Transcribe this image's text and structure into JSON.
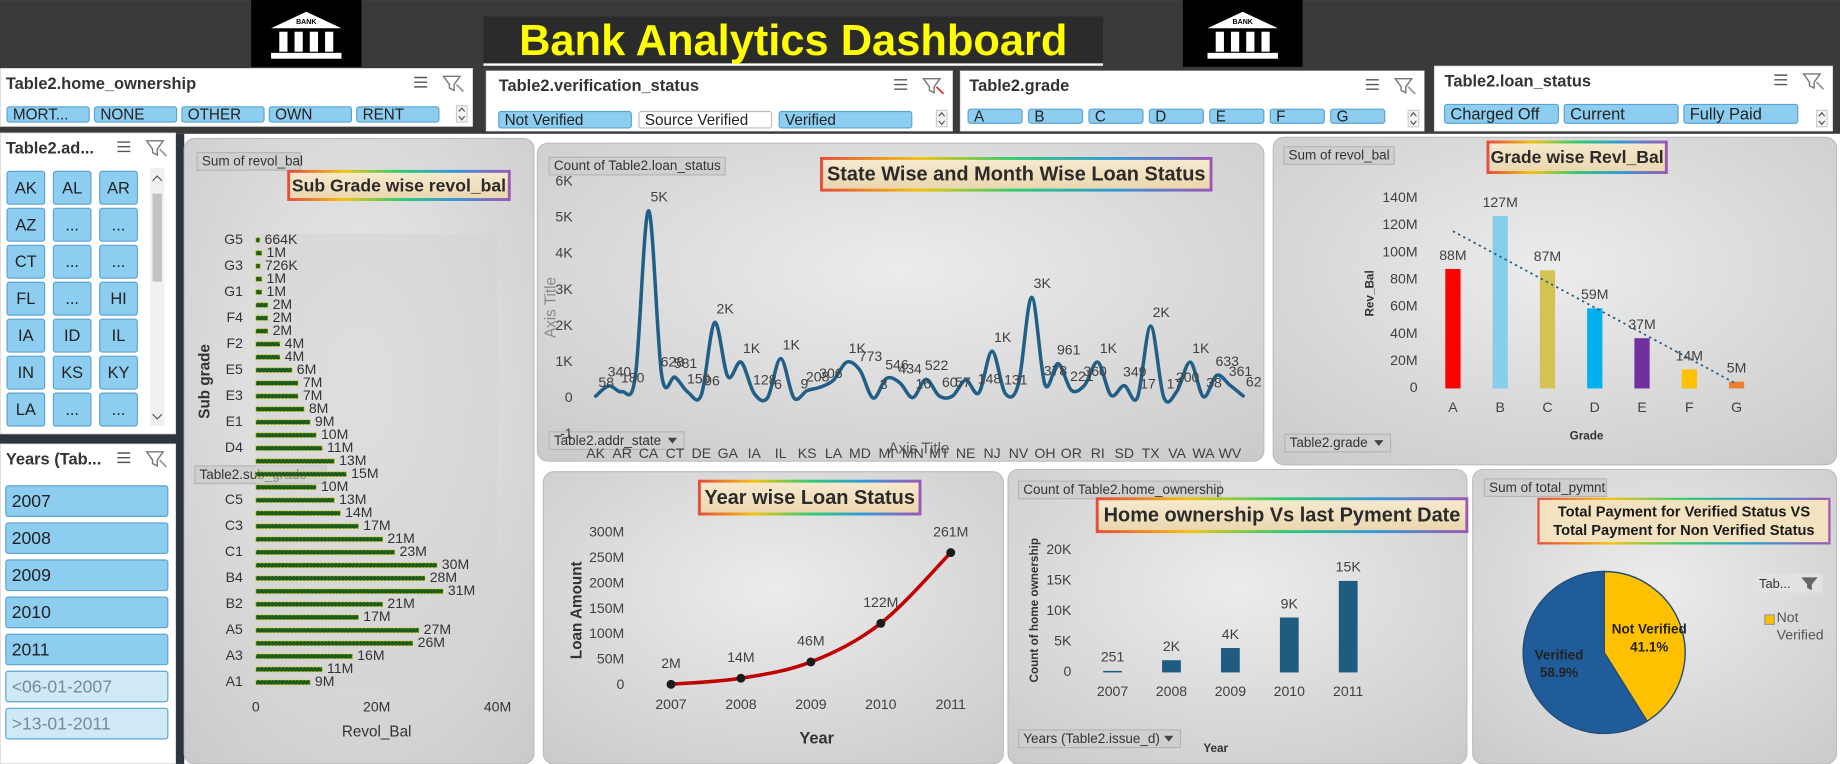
{
  "header": {
    "title": "Bank Analytics Dashboard",
    "logo_text": "BANK"
  },
  "slicers": [
    {
      "title": "Table2.home_ownership",
      "items": [
        "MORT...",
        "NONE",
        "OTHER",
        "OWN",
        "RENT"
      ]
    },
    {
      "title": "Table2.verification_status",
      "items": [
        {
          "label": "Not Verified",
          "selected": true
        },
        {
          "label": "Source Verified",
          "selected": false
        },
        {
          "label": "Verified",
          "selected": true
        }
      ]
    },
    {
      "title": "Table2.grade",
      "items": [
        "A",
        "B",
        "C",
        "D",
        "E",
        "F",
        "G"
      ]
    },
    {
      "title": "Table2.loan_status",
      "items": [
        "Charged Off",
        "Current",
        "Fully Paid"
      ]
    },
    {
      "title": "Table2.ad...",
      "items": [
        "AK",
        "AL",
        "AR",
        "AZ",
        "...",
        "...",
        "CT",
        "...",
        "...",
        "FL",
        "...",
        "HI",
        "IA",
        "ID",
        "IL",
        "IN",
        "KS",
        "KY",
        "LA",
        "...",
        "..."
      ]
    },
    {
      "title": "Years (Tab...",
      "items": [
        {
          "label": "2007",
          "has_data": true
        },
        {
          "label": "2008",
          "has_data": true
        },
        {
          "label": "2009",
          "has_data": true
        },
        {
          "label": "2010",
          "has_data": true
        },
        {
          "label": "2011",
          "has_data": true
        },
        {
          "label": "<06-01-2007",
          "has_data": false
        },
        {
          "label": ">13-01-2011",
          "has_data": false
        }
      ]
    }
  ],
  "chart_data": [
    {
      "type": "hbar",
      "title": "Sub Grade  wise revol_bal",
      "field_button": "Sum of revol_bal",
      "axis_button": "Table2.sub_grade",
      "y_label": "Sub grade",
      "x_label": "Revol_Bal",
      "categories": [
        "G5",
        null,
        "G3",
        null,
        "G1",
        null,
        "F4",
        null,
        "F2",
        null,
        "E5",
        null,
        "E3",
        null,
        "E1",
        null,
        "D4",
        null,
        null,
        null,
        "C5",
        null,
        "C3",
        null,
        "C1",
        null,
        "B4",
        null,
        "B2",
        null,
        "A5",
        null,
        "A3",
        null,
        "A1"
      ],
      "values": [
        664000,
        1000000,
        726000,
        1000000,
        1000000,
        2000000,
        2000000,
        2000000,
        4000000,
        4000000,
        6000000,
        7000000,
        7000000,
        8000000,
        9000000,
        10000000,
        11000000,
        13000000,
        15000000,
        10000000,
        13000000,
        14000000,
        17000000,
        21000000,
        23000000,
        30000000,
        28000000,
        31000000,
        21000000,
        17000000,
        27000000,
        26000000,
        16000000,
        11000000,
        9000000
      ],
      "value_labels": [
        "664K",
        "1M",
        "726K",
        "1M",
        "1M",
        "2M",
        "2M",
        "2M",
        "4M",
        "4M",
        "6M",
        "7M",
        "7M",
        "8M",
        "9M",
        "10M",
        "11M",
        "13M",
        "15M",
        "10M",
        "13M",
        "14M",
        "17M",
        "21M",
        "23M",
        "30M",
        "28M",
        "31M",
        "21M",
        "17M",
        "27M",
        "26M",
        "16M",
        "11M",
        "9M"
      ],
      "color": "#1e5b1e",
      "edge_color": "#d6d600",
      "xlim": [
        0,
        40000000
      ],
      "xticks": [
        0,
        {
          "value": 20000000,
          "label": "20M"
        },
        {
          "value": 40000000,
          "label": "40M"
        }
      ],
      "grid": false
    },
    {
      "type": "line",
      "smooth": true,
      "title": "State Wise and Month Wise Loan Status",
      "field_button": "Count of Table2.loan_status",
      "axis_button": "Table2.addr_state",
      "y_label": "Axis Title",
      "x_label": "Axis Title",
      "categories": [
        "AK",
        null,
        "AR",
        null,
        "CA",
        null,
        "CT",
        null,
        "DE",
        null,
        "GA",
        null,
        "IA",
        null,
        "IL",
        null,
        "KS",
        null,
        "LA",
        null,
        "MD",
        null,
        "MI",
        null,
        "MN",
        null,
        "MT",
        null,
        "NE",
        null,
        "NJ",
        null,
        "NV",
        null,
        "OH",
        null,
        "OR",
        null,
        "RI",
        null,
        "SD",
        null,
        "TX",
        null,
        "VA",
        null,
        "WA",
        null,
        "WV",
        null
      ],
      "values": [
        58,
        340,
        180,
        600,
        5200,
        628,
        581,
        159,
        96,
        2100,
        600,
        1000,
        128,
        6,
        1100,
        9,
        208,
        306,
        500,
        1000,
        773,
        3,
        546,
        434,
        16,
        522,
        60,
        57,
        500,
        148,
        1300,
        131,
        400,
        2800,
        378,
        961,
        221,
        360,
        1000,
        80,
        349,
        17,
        2000,
        17,
        200,
        1000,
        38,
        633,
        361,
        62
      ],
      "value_labels": [
        "58",
        "340",
        "180",
        null,
        "5K",
        "628",
        "581",
        "159",
        "96",
        "2K",
        null,
        "1K",
        "128",
        "6",
        "1K",
        "9",
        "208",
        "306",
        null,
        "1K",
        "773",
        "3",
        "546",
        "434",
        "16",
        "522",
        "60",
        "57",
        null,
        "148",
        "1K",
        "131",
        null,
        "3K",
        "378",
        "961",
        "221",
        "360",
        "1K",
        null,
        "349",
        "17",
        "2K",
        "17",
        "200",
        "1K",
        "38",
        "633",
        "361",
        "62"
      ],
      "color": "#215f86",
      "ylim": [
        -1000,
        6000
      ],
      "yticks": [
        {
          "value": -1000,
          "label": "-1"
        },
        0,
        {
          "value": 1000,
          "label": "1K"
        },
        {
          "value": 2000,
          "label": "2K"
        },
        {
          "value": 3000,
          "label": "3K"
        },
        {
          "value": 4000,
          "label": "4K"
        },
        {
          "value": 5000,
          "label": "5K"
        },
        {
          "value": 6000,
          "label": "6K"
        }
      ],
      "grid": false
    },
    {
      "type": "bar",
      "title": "Grade wise Revl_Bal",
      "field_button": "Sum of revol_bal",
      "axis_button": "Table2.grade",
      "y_label": "Rev_Bal",
      "x_label": "Grade",
      "categories": [
        "A",
        "B",
        "C",
        "D",
        "E",
        "F",
        "G"
      ],
      "values": [
        88000000,
        127000000,
        87000000,
        59000000,
        37000000,
        14000000,
        5000000
      ],
      "value_labels": [
        "88M",
        "127M",
        "87M",
        "59M",
        "37M",
        "14M",
        "5M"
      ],
      "colors": [
        "#ff0000",
        "#87ceeb",
        "#d4c252",
        "#00b0f0",
        "#7030a0",
        "#ffc000",
        "#ed7d31"
      ],
      "trendline": true,
      "trendline_color": "#215f86",
      "ylim": [
        0,
        140000000
      ],
      "yticks": [
        0,
        {
          "value": 20000000,
          "label": "20M"
        },
        {
          "value": 40000000,
          "label": "40M"
        },
        {
          "value": 60000000,
          "label": "60M"
        },
        {
          "value": 80000000,
          "label": "80M"
        },
        {
          "value": 100000000,
          "label": "100M"
        },
        {
          "value": 120000000,
          "label": "120M"
        },
        {
          "value": 140000000,
          "label": "140M"
        }
      ],
      "grid": false
    },
    {
      "type": "line",
      "smooth": true,
      "markers": true,
      "marker_color": "#1a1a1a",
      "title": "Year wise Loan Status",
      "y_label": "Loan Amount",
      "x_label": "Year",
      "categories": [
        "2007",
        "2008",
        "2009",
        "2010",
        "2011"
      ],
      "values": [
        2000000,
        14000000,
        46000000,
        122000000,
        261000000
      ],
      "value_labels": [
        "2M",
        "14M",
        "46M",
        "122M",
        "261M"
      ],
      "color": "#c00000",
      "ylim": [
        0,
        300000000
      ],
      "yticks": [
        0,
        {
          "value": 50000000,
          "label": "50M"
        },
        {
          "value": 100000000,
          "label": "100M"
        },
        {
          "value": 150000000,
          "label": "150M"
        },
        {
          "value": 200000000,
          "label": "200M"
        },
        {
          "value": 250000000,
          "label": "250M"
        },
        {
          "value": 300000000,
          "label": "300M"
        }
      ],
      "grid": false
    },
    {
      "type": "bar",
      "title": "Home ownership Vs last Pyment Date",
      "field_button": "Count of Table2.home_ownership",
      "axis_button": "Years (Table2.issue_d)",
      "y_label": "Count of home ownership",
      "x_label": "Year",
      "categories": [
        "2007",
        "2008",
        "2009",
        "2010",
        "2011"
      ],
      "values": [
        251,
        2000,
        4000,
        9000,
        15000
      ],
      "value_labels": [
        "251",
        "2K",
        "4K",
        "9K",
        "15K"
      ],
      "color": "#1f5c80",
      "ylim": [
        0,
        20000
      ],
      "yticks": [
        0,
        {
          "value": 5000,
          "label": "5K"
        },
        {
          "value": 10000,
          "label": "10K"
        },
        {
          "value": 15000,
          "label": "15K"
        },
        {
          "value": 20000,
          "label": "20K"
        }
      ],
      "grid": false
    },
    {
      "type": "pie",
      "title": "Total Payment for Verified Status VS Total Payment  for Non Verified Status",
      "field_button": "Sum of total_pymnt",
      "legend_title": "Tab...",
      "categories": [
        "Not Verified",
        "Verified"
      ],
      "values": [
        41.1,
        58.9
      ],
      "value_labels": [
        "41.1%",
        "58.9%"
      ],
      "colors": [
        "#ffc000",
        "#1f5c99"
      ]
    }
  ]
}
